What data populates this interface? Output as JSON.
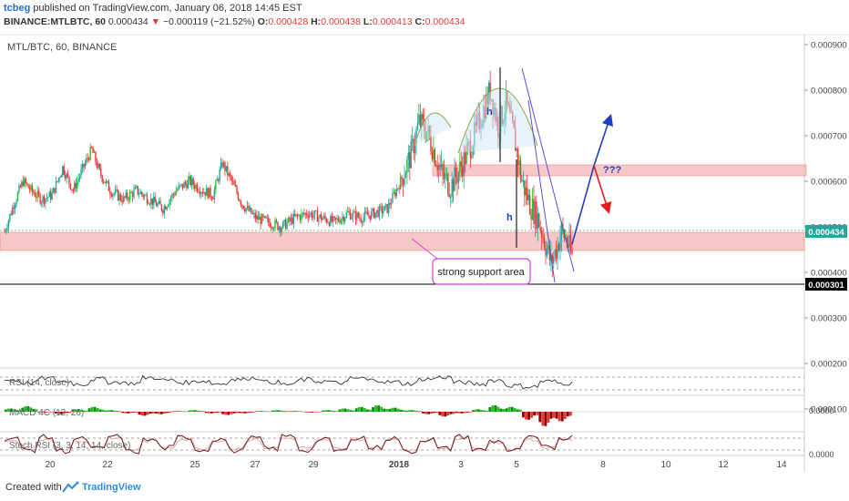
{
  "header": {
    "author": "tcbeg",
    "published": "published on TradingView.com, January 06, 2018 14:45 EST",
    "symbol_line": "BINANCE:MTLBTC, 60",
    "last": "0.000434",
    "change_arrow": "▼",
    "change": "−0.000119 (−21.52%)",
    "o_label": "O:",
    "o": "0.000428",
    "h_label": "H:",
    "h": "0.000438",
    "l_label": "L:",
    "l": "0.000413",
    "c_label": "C:",
    "c": "0.000434"
  },
  "colors": {
    "up": "#26a69a",
    "up_bright": "#21c321",
    "down": "#e53935",
    "support_fill": "#f4b6b6",
    "arrow_blue": "#1f3fbf",
    "arrow_red": "#e02020",
    "channel": "#5c4fd6",
    "callout": "#d63fd6",
    "curve": "#8aa84a"
  },
  "chart_data": [
    {
      "type": "candlestick",
      "title": "MTL/BTC, 60, BINANCE",
      "x_tick_labels": [
        "20",
        "22",
        "25",
        "27",
        "29",
        "2018",
        "3",
        "5",
        "8",
        "10",
        "12",
        "14"
      ],
      "y_tick_labels": [
        "0.000900",
        "0.000800",
        "0.000700",
        "0.000600",
        "0.000500",
        "0.000400",
        "0.000300",
        "0.000200",
        "0.000100"
      ],
      "ylim": [
        8e-05,
        0.00093
      ],
      "last_price_label": "0.000434",
      "horizontal_line_label": "0.000301",
      "grid": false,
      "approx_close_series": [
        [
          0,
          0.00049
        ],
        [
          7,
          0.00055
        ],
        [
          14,
          0.0006
        ],
        [
          20,
          0.00058
        ],
        [
          28,
          0.00056
        ],
        [
          36,
          0.00057
        ],
        [
          44,
          0.00063
        ],
        [
          52,
          0.00058
        ],
        [
          58,
          0.00062
        ],
        [
          66,
          0.00067
        ],
        [
          72,
          0.00062
        ],
        [
          80,
          0.00058
        ],
        [
          90,
          0.00056
        ],
        [
          100,
          0.00058
        ],
        [
          110,
          0.00056
        ],
        [
          120,
          0.00054
        ],
        [
          130,
          0.00058
        ],
        [
          140,
          0.0006
        ],
        [
          150,
          0.00058
        ],
        [
          158,
          0.00057
        ],
        [
          165,
          0.00064
        ],
        [
          172,
          0.0006
        ],
        [
          180,
          0.00055
        ],
        [
          190,
          0.00052
        ],
        [
          200,
          0.00051
        ],
        [
          210,
          0.0005
        ],
        [
          220,
          0.00052
        ],
        [
          230,
          0.00053
        ],
        [
          240,
          0.00052
        ],
        [
          250,
          0.00051
        ],
        [
          260,
          0.00053
        ],
        [
          270,
          0.00052
        ],
        [
          280,
          0.00053
        ],
        [
          290,
          0.00054
        ],
        [
          300,
          0.0006
        ],
        [
          308,
          0.00066
        ],
        [
          314,
          0.00073
        ],
        [
          320,
          0.00071
        ],
        [
          326,
          0.00066
        ],
        [
          332,
          0.00061
        ],
        [
          338,
          0.00059
        ],
        [
          344,
          0.00062
        ],
        [
          350,
          0.00066
        ],
        [
          356,
          0.0007
        ],
        [
          362,
          0.00075
        ],
        [
          368,
          0.0008
        ],
        [
          374,
          0.00072
        ],
        [
          380,
          0.00077
        ],
        [
          386,
          0.0007
        ],
        [
          392,
          0.0006
        ],
        [
          398,
          0.00055
        ],
        [
          404,
          0.00052
        ],
        [
          410,
          0.00046
        ],
        [
          414,
          0.00042
        ],
        [
          418,
          0.00045
        ],
        [
          422,
          0.00049
        ],
        [
          426,
          0.00047
        ],
        [
          430,
          0.000434
        ]
      ],
      "annotations": [
        {
          "kind": "text",
          "text": "h",
          "near": "head"
        },
        {
          "kind": "text",
          "text": "h",
          "near": "measured move"
        },
        {
          "kind": "text",
          "text": "???",
          "near": "resistance zone"
        },
        {
          "kind": "callout",
          "text": "strong support area"
        }
      ],
      "zones": [
        {
          "name": "support",
          "from": 0.000385,
          "to": 0.000425
        },
        {
          "name": "neckline",
          "from": 0.00057,
          "to": 0.00059
        }
      ]
    },
    {
      "type": "line",
      "title": "RSI (14, close)",
      "approx_values": [
        55,
        48,
        60,
        52,
        45,
        58,
        50,
        47,
        62,
        55,
        49,
        53,
        46,
        57,
        61,
        50,
        44,
        56,
        52,
        48,
        60,
        55,
        50,
        46,
        58,
        63,
        49,
        45,
        55,
        41,
        38,
        52,
        47
      ]
    },
    {
      "type": "histogram",
      "title": "MACD 4C (12, 26)",
      "y_tick_labels": [
        "0.0000"
      ],
      "approx_values": [
        0.4,
        0.7,
        -0.1,
        -0.3,
        0.3,
        0.6,
        0.2,
        -0.2,
        -0.5,
        -0.3,
        0.1,
        0.2,
        -0.2,
        -0.4,
        -0.2,
        0.1,
        0.2,
        0.1,
        -0.1,
        0.2,
        0.4,
        0.6,
        0.8,
        0.5,
        0.2,
        -0.3,
        -0.6,
        -0.2,
        0.3,
        0.8,
        0.6,
        -1.0,
        -1.8,
        -1.2
      ]
    },
    {
      "type": "line",
      "title": "Stoch RSI (3, 3, 14, 14, close)",
      "y_tick_labels": [
        "0.0000"
      ],
      "approx_k": [
        80,
        20,
        85,
        15,
        75,
        25,
        90,
        10,
        70,
        30,
        85,
        20,
        75,
        15,
        80,
        25,
        90,
        20,
        70,
        15,
        85,
        30,
        80,
        10,
        75,
        25,
        90,
        20,
        65,
        15,
        80,
        30,
        85
      ],
      "approx_d": [
        70,
        30,
        75,
        25,
        65,
        35,
        80,
        20,
        65,
        35,
        75,
        30,
        70,
        25,
        70,
        30,
        80,
        30,
        65,
        25,
        75,
        35,
        70,
        20,
        70,
        30,
        80,
        30,
        60,
        25,
        70,
        35,
        75
      ]
    }
  ],
  "footer": {
    "created": "Created with",
    "brand": "TradingView"
  }
}
